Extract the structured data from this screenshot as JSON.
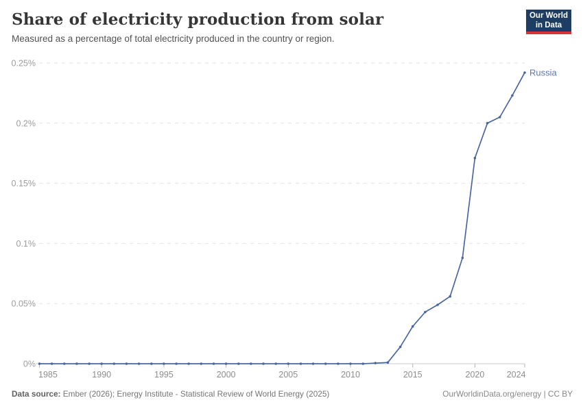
{
  "header": {
    "title": "Share of electricity production from solar",
    "subtitle": "Measured as a percentage of total electricity produced in the country or region."
  },
  "logo": {
    "line1": "Our World",
    "line2": "in Data",
    "bg_color": "#1d3d63",
    "bar_color": "#d7333f"
  },
  "footer": {
    "datasource_label": "Data source:",
    "datasource_text": " Ember (2026); Energy Institute - Statistical Review of World Energy (2025)",
    "credit": "OurWorldinData.org/energy | CC BY"
  },
  "chart_data": {
    "type": "line",
    "title": "Share of electricity production from solar",
    "xlabel": "",
    "ylabel": "",
    "unit": "%",
    "grid": "horizontal-dashed",
    "legend_position": "end-of-line-label",
    "xlim": [
      1985,
      2024
    ],
    "ylim": [
      0,
      0.25
    ],
    "x": [
      1985,
      1986,
      1987,
      1988,
      1989,
      1990,
      1991,
      1992,
      1993,
      1994,
      1995,
      1996,
      1997,
      1998,
      1999,
      2000,
      2001,
      2002,
      2003,
      2004,
      2005,
      2006,
      2007,
      2008,
      2009,
      2010,
      2011,
      2012,
      2013,
      2014,
      2015,
      2016,
      2017,
      2018,
      2019,
      2020,
      2021,
      2022,
      2023,
      2024
    ],
    "xticks": [
      1985,
      1990,
      1995,
      2000,
      2005,
      2010,
      2015,
      2020,
      2024
    ],
    "yticks": [
      {
        "value": 0,
        "label": "0%"
      },
      {
        "value": 0.05,
        "label": "0.05%"
      },
      {
        "value": 0.1,
        "label": "0.1%"
      },
      {
        "value": 0.15,
        "label": "0.15%"
      },
      {
        "value": 0.2,
        "label": "0.2%"
      },
      {
        "value": 0.25,
        "label": "0.25%"
      }
    ],
    "series": [
      {
        "name": "Russia",
        "color": "#4a66a0",
        "label_color": "#5b76ad",
        "values": [
          0,
          0,
          0,
          0,
          0,
          0,
          0,
          0,
          0,
          0,
          0,
          0,
          0,
          0,
          0,
          0,
          0,
          0,
          0,
          0,
          0,
          0,
          0,
          0,
          0,
          0,
          0,
          0.0005,
          0.001,
          0.014,
          0.031,
          0.043,
          0.049,
          0.056,
          0.088,
          0.171,
          0.2,
          0.205,
          0.223,
          0.242
        ]
      }
    ],
    "colors": {
      "gridline": "#e2e2e2",
      "axis_line": "#c9c9c9",
      "tick_mark": "#b3b3b3",
      "ytick_label": "#9c9c9c",
      "xtick_label": "#8d8d8d"
    }
  }
}
